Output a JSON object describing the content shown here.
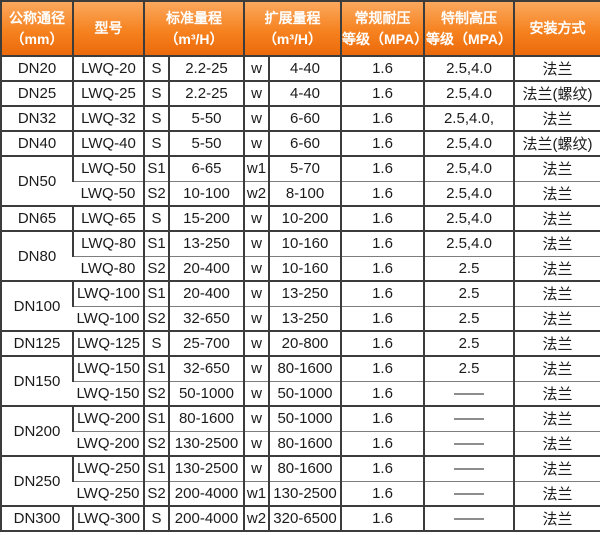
{
  "colors": {
    "header_grad_top": "#fba85e",
    "header_grad_mid": "#f6821f",
    "header_grad_bottom": "#ec6a0b",
    "header_text": "#ffffff",
    "border_dark": "#3c3c3c",
    "border_light": "#7e7e7e",
    "cell_text": "#1b1b1b",
    "cell_bg": "#ffffff"
  },
  "table": {
    "header": {
      "columns": [
        {
          "label": "公称通径\n（mm）"
        },
        {
          "label": "型号"
        },
        {
          "label": "标准量程\n（m³/H）"
        },
        {
          "label": "扩展量程\n（m³/H）"
        },
        {
          "label": "常规耐压\n等级（MPA）"
        },
        {
          "label": "特制高压\n等级（MPA）"
        },
        {
          "label": "安装方式"
        }
      ]
    },
    "groups": [
      {
        "diameter": "DN20",
        "rows": [
          {
            "model": "LWQ-20",
            "s_label": "S",
            "std_range": "2.2-25",
            "w_label": "w",
            "ext_range": "4-40",
            "regular_pressure": "1.6",
            "high_pressure": "2.5,4.0",
            "install": "法兰"
          }
        ]
      },
      {
        "diameter": "DN25",
        "rows": [
          {
            "model": "LWQ-25",
            "s_label": "S",
            "std_range": "2.2-25",
            "w_label": "w",
            "ext_range": "4-40",
            "regular_pressure": "1.6",
            "high_pressure": "2.5,4.0",
            "install": "法兰(螺纹)"
          }
        ]
      },
      {
        "diameter": "DN32",
        "rows": [
          {
            "model": "LWQ-32",
            "s_label": "S",
            "std_range": "5-50",
            "w_label": "w",
            "ext_range": "6-60",
            "regular_pressure": "1.6",
            "high_pressure": "2.5,4.0,",
            "install": "法兰"
          }
        ]
      },
      {
        "diameter": "DN40",
        "rows": [
          {
            "model": "LWQ-40",
            "s_label": "S",
            "std_range": "5-50",
            "w_label": "w",
            "ext_range": "6-60",
            "regular_pressure": "1.6",
            "high_pressure": "2.5,4.0",
            "install": "法兰(螺纹)"
          }
        ]
      },
      {
        "diameter": "DN50",
        "rows": [
          {
            "model": "LWQ-50",
            "s_label": "S1",
            "std_range": "6-65",
            "w_label": "w1",
            "ext_range": "5-70",
            "regular_pressure": "1.6",
            "high_pressure": "2.5,4.0",
            "install": "法兰"
          },
          {
            "model": "LWQ-50",
            "s_label": "S2",
            "std_range": "10-100",
            "w_label": "w2",
            "ext_range": "8-100",
            "regular_pressure": "1.6",
            "high_pressure": "2.5,4.0",
            "install": "法兰"
          }
        ]
      },
      {
        "diameter": "DN65",
        "rows": [
          {
            "model": "LWQ-65",
            "s_label": "S",
            "std_range": "15-200",
            "w_label": "w",
            "ext_range": "10-200",
            "regular_pressure": "1.6",
            "high_pressure": "2.5,4.0",
            "install": "法兰"
          }
        ]
      },
      {
        "diameter": "DN80",
        "rows": [
          {
            "model": "LWQ-80",
            "s_label": "S1",
            "std_range": "13-250",
            "w_label": "w",
            "ext_range": "10-160",
            "regular_pressure": "1.6",
            "high_pressure": "2.5,4.0",
            "install": "法兰"
          },
          {
            "model": "LWQ-80",
            "s_label": "S2",
            "std_range": "20-400",
            "w_label": "w",
            "ext_range": "10-160",
            "regular_pressure": "1.6",
            "high_pressure": "2.5",
            "install": "法兰"
          }
        ]
      },
      {
        "diameter": "DN100",
        "rows": [
          {
            "model": "LWQ-100",
            "s_label": "S1",
            "std_range": "20-400",
            "w_label": "w",
            "ext_range": "13-250",
            "regular_pressure": "1.6",
            "high_pressure": "2.5",
            "install": "法兰"
          },
          {
            "model": "LWQ-100",
            "s_label": "S2",
            "std_range": "32-650",
            "w_label": "w",
            "ext_range": "13-250",
            "regular_pressure": "1.6",
            "high_pressure": "2.5",
            "install": "法兰"
          }
        ]
      },
      {
        "diameter": "DN125",
        "rows": [
          {
            "model": "LWQ-125",
            "s_label": "S",
            "std_range": "25-700",
            "w_label": "w",
            "ext_range": "20-800",
            "regular_pressure": "1.6",
            "high_pressure": "2.5",
            "install": "法兰"
          }
        ]
      },
      {
        "diameter": "DN150",
        "rows": [
          {
            "model": "LWQ-150",
            "s_label": "S1",
            "std_range": "32-650",
            "w_label": "w",
            "ext_range": "80-1600",
            "regular_pressure": "1.6",
            "high_pressure": "2.5",
            "install": "法兰"
          },
          {
            "model": "LWQ-150",
            "s_label": "S2",
            "std_range": "50-1000",
            "w_label": "w",
            "ext_range": "50-1000",
            "regular_pressure": "1.6",
            "high_pressure": "——",
            "install": "法兰"
          }
        ]
      },
      {
        "diameter": "DN200",
        "rows": [
          {
            "model": "LWQ-200",
            "s_label": "S1",
            "std_range": "80-1600",
            "w_label": "w",
            "ext_range": "50-1000",
            "regular_pressure": "1.6",
            "high_pressure": "——",
            "install": "法兰"
          },
          {
            "model": "LWQ-200",
            "s_label": "S2",
            "std_range": "130-2500",
            "w_label": "w",
            "ext_range": "80-1600",
            "regular_pressure": "1.6",
            "high_pressure": "——",
            "install": "法兰"
          }
        ]
      },
      {
        "diameter": "DN250",
        "rows": [
          {
            "model": "LWQ-250",
            "s_label": "S1",
            "std_range": "130-2500",
            "w_label": "w",
            "ext_range": "80-1600",
            "regular_pressure": "1.6",
            "high_pressure": "——",
            "install": "法兰"
          },
          {
            "model": "LWQ-250",
            "s_label": "S2",
            "std_range": "200-4000",
            "w_label": "w1",
            "ext_range": "130-2500",
            "regular_pressure": "1.6",
            "high_pressure": "——",
            "install": "法兰"
          }
        ]
      },
      {
        "diameter": "DN300",
        "rows": [
          {
            "model": "LWQ-300",
            "s_label": "S",
            "std_range": "200-4000",
            "w_label": "w2",
            "ext_range": "320-6500",
            "regular_pressure": "1.6",
            "high_pressure": "——",
            "install": "法兰"
          }
        ]
      }
    ]
  }
}
